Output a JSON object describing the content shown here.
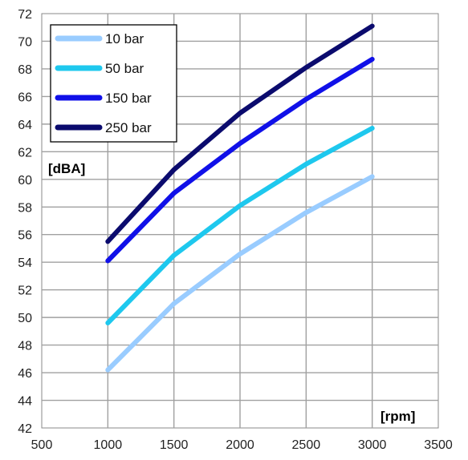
{
  "chart_data": {
    "type": "line",
    "title": "",
    "xlabel": "[rpm]",
    "ylabel": "[dBA]",
    "xlim": [
      500,
      3500
    ],
    "ylim": [
      42,
      72
    ],
    "x_ticks": [
      500,
      1000,
      1500,
      2000,
      2500,
      3000,
      3500
    ],
    "y_ticks": [
      42,
      44,
      46,
      48,
      50,
      52,
      54,
      56,
      58,
      60,
      62,
      64,
      66,
      68,
      70,
      72
    ],
    "grid": true,
    "legend_position": "top-left",
    "x": [
      1000,
      1500,
      2000,
      2500,
      3000
    ],
    "series": [
      {
        "name": "10 bar",
        "color": "#99ccff",
        "values": [
          46.2,
          51.0,
          54.6,
          57.6,
          60.2
        ]
      },
      {
        "name": "50 bar",
        "color": "#1ec8ee",
        "values": [
          49.6,
          54.5,
          58.1,
          61.1,
          63.7
        ]
      },
      {
        "name": "150 bar",
        "color": "#1010e8",
        "values": [
          54.1,
          59.0,
          62.6,
          65.8,
          68.7
        ]
      },
      {
        "name": "250 bar",
        "color": "#0b0b6e",
        "values": [
          55.5,
          60.7,
          64.8,
          68.1,
          71.1
        ]
      }
    ]
  }
}
